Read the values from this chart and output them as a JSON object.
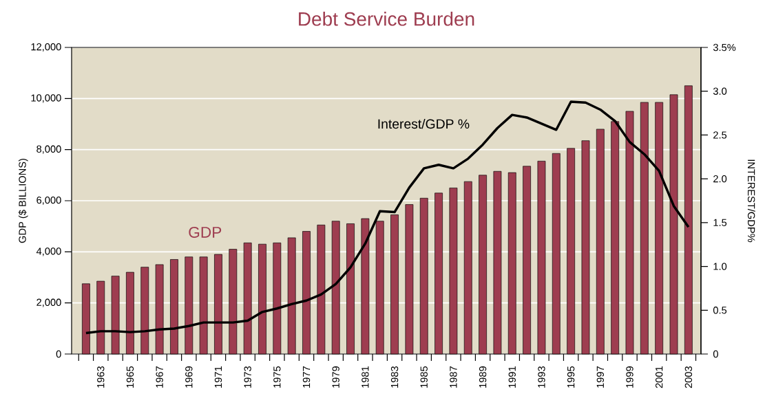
{
  "chart_data": {
    "type": "bar",
    "title": "Debt Service Burden",
    "ylabel": "GDP ($ BILLIONS)",
    "y2label": "INTEREST/GDP%",
    "categories": [
      null,
      "1963",
      null,
      "1965",
      null,
      "1967",
      null,
      "1969",
      null,
      "1971",
      null,
      "1973",
      null,
      "1975",
      null,
      "1977",
      null,
      "1979",
      null,
      "1981",
      null,
      "1983",
      null,
      "1985",
      null,
      "1987",
      null,
      "1989",
      null,
      "1991",
      null,
      "1993",
      null,
      "1995",
      null,
      "1997",
      null,
      "1999",
      null,
      "2001",
      null,
      "2003"
    ],
    "series": [
      {
        "name": "GDP",
        "color": "#9e3d50",
        "values": [
          2750,
          2850,
          3050,
          3200,
          3400,
          3500,
          3700,
          3800,
          3800,
          3900,
          4100,
          4350,
          4300,
          4350,
          4550,
          4800,
          5050,
          5200,
          5100,
          5300,
          5200,
          5450,
          5850,
          6100,
          6300,
          6500,
          6750,
          7000,
          7150,
          7100,
          7350,
          7550,
          7850,
          8050,
          8350,
          8800,
          9100,
          9500,
          9850,
          9850,
          10150,
          10500
        ]
      },
      {
        "name": "Interest/GDP %",
        "type": "line",
        "axis": "y2",
        "color": "#000000",
        "values": [
          0.24,
          0.26,
          0.26,
          0.25,
          0.26,
          0.28,
          0.29,
          0.32,
          0.36,
          0.36,
          0.36,
          0.38,
          0.48,
          0.52,
          0.57,
          0.61,
          0.68,
          0.8,
          0.99,
          1.26,
          1.63,
          1.62,
          1.9,
          2.12,
          2.16,
          2.12,
          2.23,
          2.39,
          2.58,
          2.73,
          2.7,
          2.63,
          2.56,
          2.88,
          2.87,
          2.79,
          2.66,
          2.42,
          2.28,
          2.09,
          1.69,
          1.45
        ]
      }
    ],
    "ylim": [
      0,
      12000
    ],
    "yticks": [
      0,
      {
        "value": 2000,
        "label": "2,000"
      },
      {
        "value": 4000,
        "label": "4,000"
      },
      {
        "value": 6000,
        "label": "6,000"
      },
      {
        "value": 8000,
        "label": "8,000"
      },
      {
        "value": 10000,
        "label": "10,000"
      },
      {
        "value": 12000,
        "label": "12,000"
      }
    ],
    "y2lim": [
      0,
      3.5
    ],
    "y2ticks": [
      0,
      0.5,
      {
        "value": 1,
        "label": "1.0"
      },
      1.5,
      {
        "value": 2,
        "label": "2.0"
      },
      2.5,
      {
        "value": 3,
        "label": "3.0"
      },
      {
        "value": 3.5,
        "label": "3.5%"
      }
    ],
    "grid": "y",
    "line_style": "solid",
    "marker": "none"
  }
}
